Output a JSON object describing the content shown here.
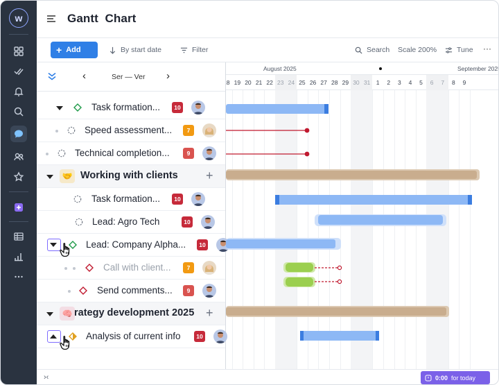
{
  "app": {
    "logo_letter": "w"
  },
  "header": {
    "title": "Gantt  Chart"
  },
  "toolbar": {
    "add_label": "Add",
    "sort_label": "By start date",
    "filter_label": "Filter",
    "search_label": "Search",
    "scale_label": "Scale 200%",
    "tune_label": "Tune",
    "more_label": "···"
  },
  "nav": {
    "range_label": "Ser — Ver",
    "prev": "‹",
    "next": "›"
  },
  "rows": [
    {
      "label": "Task formation...",
      "badge": "10",
      "badge_color": "#c62a3a",
      "status_color": "#1e9a48",
      "avatar": "male"
    },
    {
      "label": "Speed assessment...",
      "badge": "7",
      "badge_color": "#f29a12",
      "status_color": "#9aa1ab",
      "avatar": "female"
    },
    {
      "label": "Technical completion...",
      "badge": "9",
      "badge_color": "#d9534f",
      "status_color": "#9aa1ab",
      "avatar": "male"
    },
    {
      "label": "Working with clients",
      "group": true,
      "icon": "🤝"
    },
    {
      "label": "Task formation...",
      "badge": "10",
      "badge_color": "#c62a3a",
      "status_color": "#9aa1ab",
      "avatar": "male"
    },
    {
      "label": "Lead: Agro Tech",
      "badge": "10",
      "badge_color": "#c62a3a",
      "status_color": "#9aa1ab",
      "avatar": "male"
    },
    {
      "label": "Lead: Company Alpha...",
      "badge": "10",
      "badge_color": "#c62a3a",
      "status_color": "#1e9a48",
      "avatar": "male"
    },
    {
      "label": "Call with client...",
      "badge": "7",
      "badge_color": "#f29a12",
      "status_color": "#c62a3a",
      "avatar": "female",
      "muted": true
    },
    {
      "label": "Send comments...",
      "badge": "9",
      "badge_color": "#d9534f",
      "status_color": "#c62a3a",
      "avatar": "male"
    },
    {
      "label": "rategy development 2025",
      "group": true,
      "icon": "🧠"
    },
    {
      "label": "Analysis of current info",
      "badge": "10",
      "badge_color": "#c62a3a",
      "status_color": "#e0a020",
      "avatar": "male"
    }
  ],
  "timeline": {
    "month_1": "August 2025",
    "month_2": "September 2025",
    "days": [
      "18",
      "19",
      "20",
      "21",
      "22",
      "23",
      "24",
      "25",
      "26",
      "27",
      "28",
      "29",
      "30",
      "31",
      "1",
      "2",
      "3",
      "4",
      "5",
      "6",
      "7",
      "8",
      "9"
    ],
    "weekend_days": [
      "23",
      "24",
      "30",
      "31",
      "6",
      "7"
    ]
  },
  "footer": {
    "collapse": "›‹",
    "timer_value": "0:00",
    "timer_suffix": "for today"
  },
  "colors": {
    "accent": "#2f7fe6",
    "bar": "#8db8f5",
    "bar_edge": "#3b7de0",
    "group_bar": "#c9ad8e",
    "green_bar": "#9bcf4f",
    "dep_line": "#c0192f",
    "timer": "#7b61e8"
  }
}
